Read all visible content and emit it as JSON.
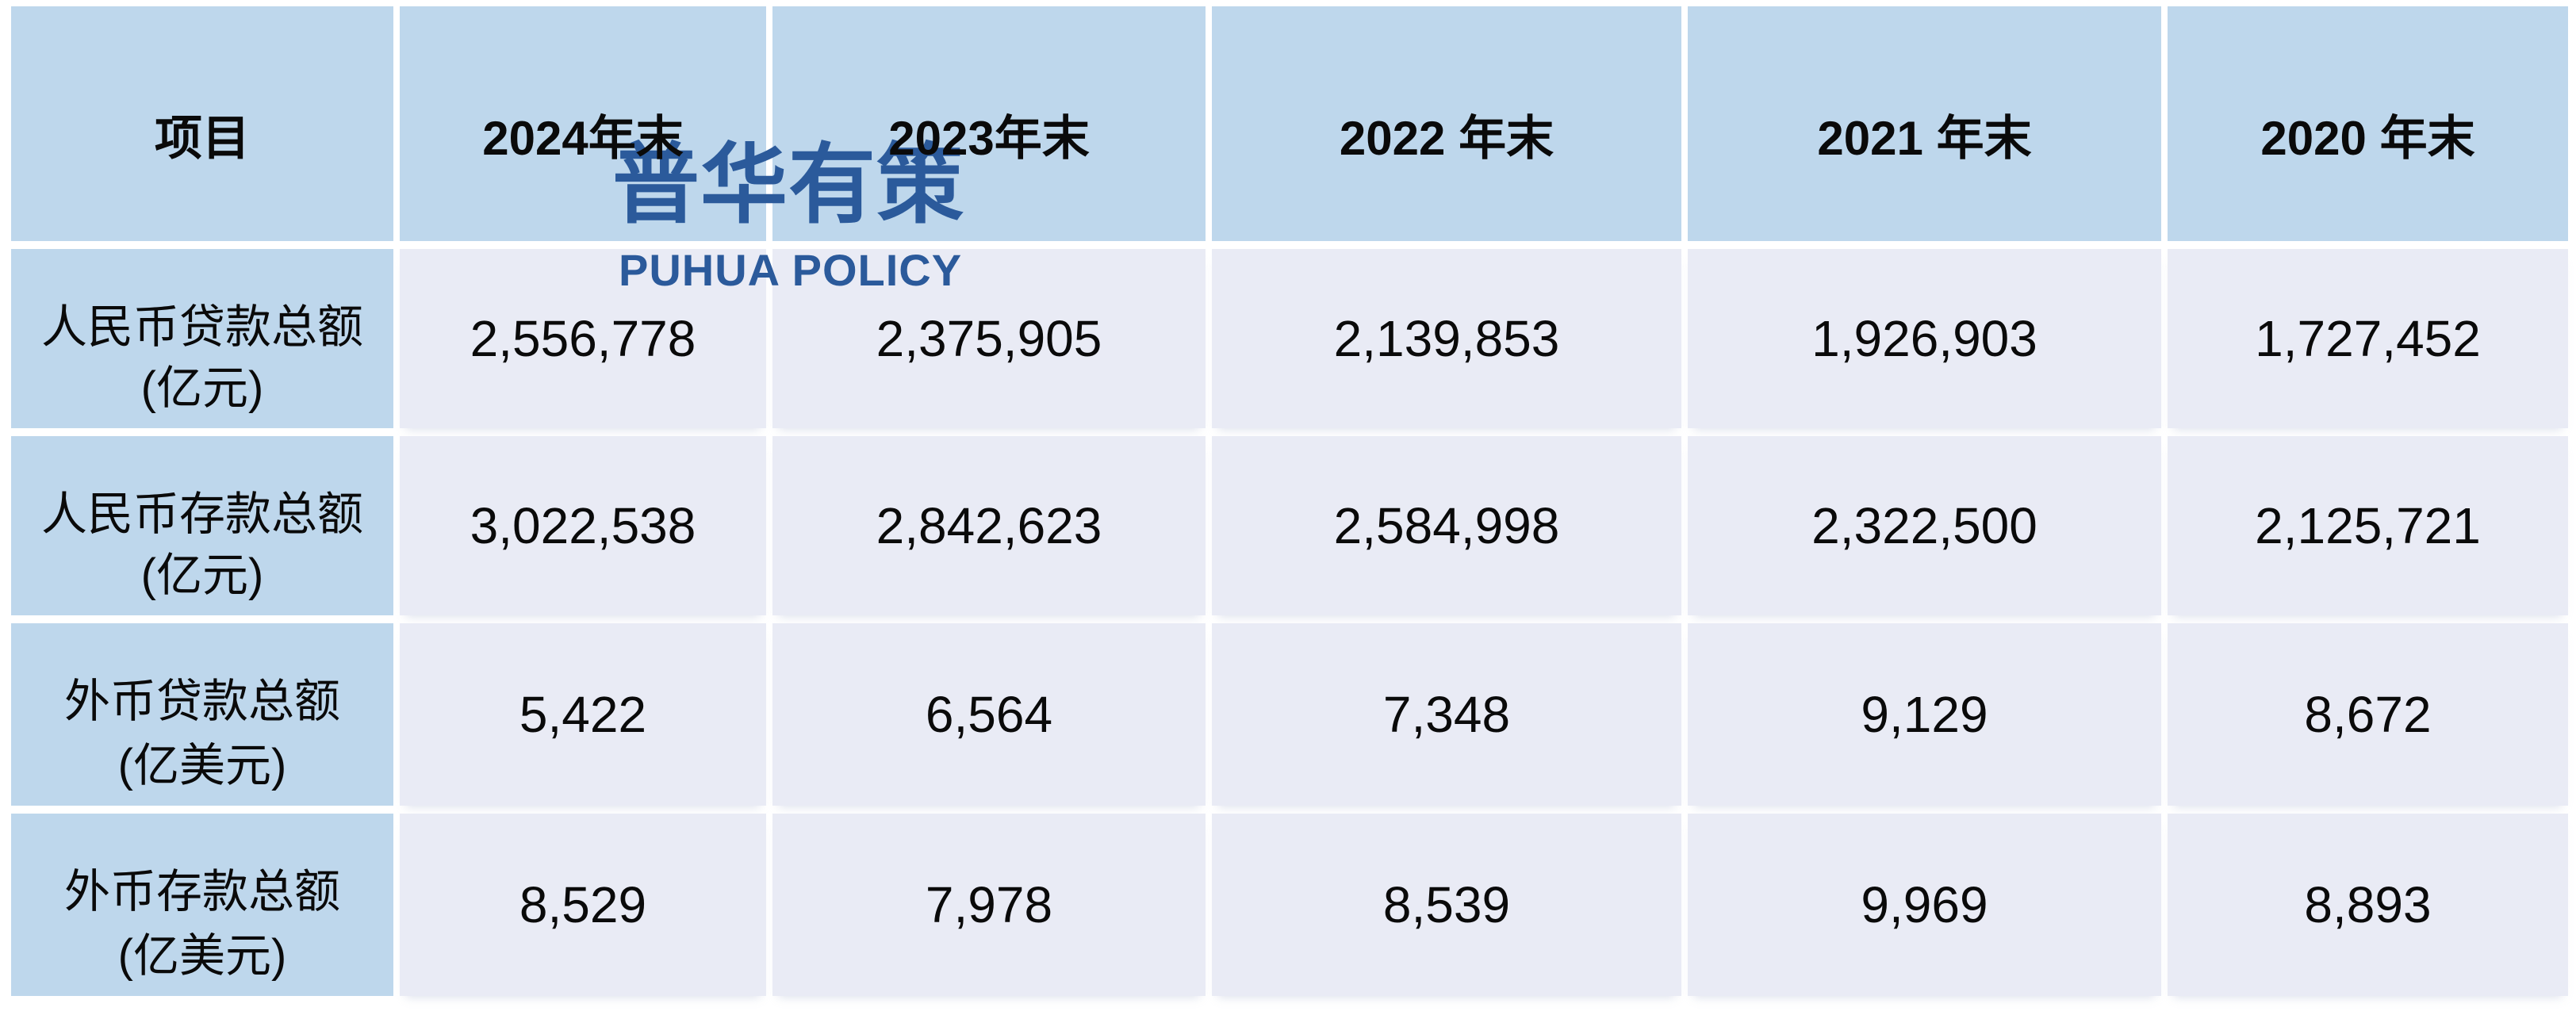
{
  "watermark": {
    "cjk": "普华有策",
    "latin": "PUHUA POLICY"
  },
  "colors": {
    "header_bg": "#BED7EC",
    "label_column_bg": "#BED7EC",
    "data_cell_bg": "#E9EBF5",
    "separator": "#FFFFFF",
    "text": "#0A0A0A",
    "watermark_blue": "#2B5A9B"
  },
  "table": {
    "columns": [
      "项目",
      "2024年末",
      "2023年末",
      "2022 年末",
      "2021 年末",
      "2020 年末"
    ],
    "rows": [
      {
        "label_line1": "人民币贷款总额",
        "label_line2": "(亿元)",
        "values": [
          "2,556,778",
          "2,375,905",
          "2,139,853",
          "1,926,903",
          "1,727,452"
        ]
      },
      {
        "label_line1": "人民币存款总额",
        "label_line2": "(亿元)",
        "values": [
          "3,022,538",
          "2,842,623",
          "2,584,998",
          "2,322,500",
          "2,125,721"
        ]
      },
      {
        "label_line1": "外币贷款总额",
        "label_line2": "(亿美元)",
        "values": [
          "5,422",
          "6,564",
          "7,348",
          "9,129",
          "8,672"
        ]
      },
      {
        "label_line1": "外币存款总额",
        "label_line2": "(亿美元)",
        "values": [
          "8,529",
          "7,978",
          "8,539",
          "9,969",
          "8,893"
        ]
      }
    ]
  }
}
